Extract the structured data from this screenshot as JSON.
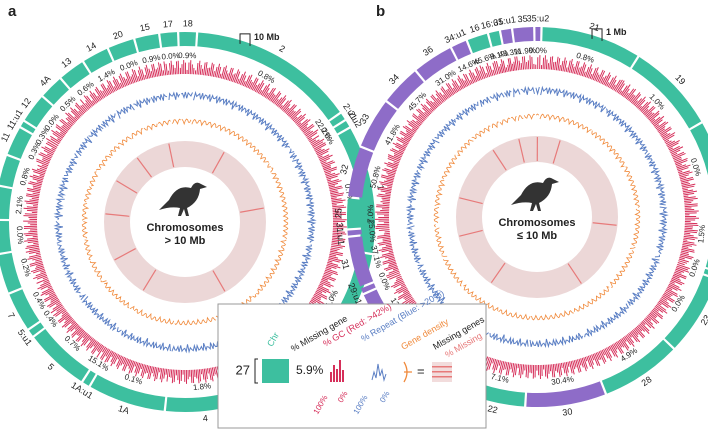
{
  "panels": [
    {
      "letter": "a",
      "center_label": [
        "Chromosomes",
        "> 10 Mb"
      ],
      "scale_label": "10 Mb",
      "chromosomes": [
        {
          "name": "2",
          "missing": "0.8%",
          "color": "#3dbf9f"
        },
        {
          "name": "2:u1",
          "missing": "22.2%",
          "color": "#3dbf9f"
        },
        {
          "name": "2:u2",
          "missing": "0.0%",
          "color": "#3dbf9f"
        },
        {
          "name": "1",
          "missing": "0.7%",
          "color": "#3dbf9f"
        },
        {
          "name": "3",
          "missing": "1.0%",
          "color": "#3dbf9f"
        },
        {
          "name": "3:u1",
          "missing": "25.0%",
          "color": "#3dbf9f"
        },
        {
          "name": "Z",
          "missing": "0.1%",
          "color": "#3dbf9f"
        },
        {
          "name": "4",
          "missing": "1.8%",
          "color": "#3dbf9f"
        },
        {
          "name": "1A",
          "missing": "0.1%",
          "color": "#3dbf9f"
        },
        {
          "name": "1A:u1",
          "missing": "15.1%",
          "color": "#3dbf9f"
        },
        {
          "name": "5",
          "missing": "0.7%",
          "color": "#3dbf9f"
        },
        {
          "name": "5:u1",
          "missing": "0.4%",
          "color": "#3dbf9f"
        },
        {
          "name": "7",
          "missing": "0.4%",
          "color": "#3dbf9f"
        },
        {
          "name": "6",
          "missing": "0.2%",
          "color": "#3dbf9f"
        },
        {
          "name": "8",
          "missing": "0.0%",
          "color": "#3dbf9f"
        },
        {
          "name": "9",
          "missing": "2.1%",
          "color": "#3dbf9f"
        },
        {
          "name": "10",
          "missing": "0.8%",
          "color": "#3dbf9f"
        },
        {
          "name": "11",
          "missing": "0.3%",
          "color": "#3dbf9f"
        },
        {
          "name": "11:u1",
          "missing": "0.3%",
          "color": "#3dbf9f"
        },
        {
          "name": "12",
          "missing": "0.0%",
          "color": "#3dbf9f"
        },
        {
          "name": "4A",
          "missing": "0.5%",
          "color": "#3dbf9f"
        },
        {
          "name": "13",
          "missing": "0.6%",
          "color": "#3dbf9f"
        },
        {
          "name": "14",
          "missing": "1.4%",
          "color": "#3dbf9f"
        },
        {
          "name": "20",
          "missing": "0.0%",
          "color": "#3dbf9f"
        },
        {
          "name": "15",
          "missing": "0.9%",
          "color": "#3dbf9f"
        },
        {
          "name": "17",
          "missing": "0.0%",
          "color": "#3dbf9f"
        },
        {
          "name": "18",
          "missing": "0.9%",
          "color": "#3dbf9f"
        }
      ]
    },
    {
      "letter": "b",
      "center_label": [
        "Chromosomes",
        "≤ 10 Mb"
      ],
      "scale_label": "1 Mb",
      "chromosomes": [
        {
          "name": "21",
          "missing": "0.8%",
          "color": "#3dbf9f"
        },
        {
          "name": "19",
          "missing": "1.0%",
          "color": "#3dbf9f"
        },
        {
          "name": "24",
          "missing": "0.0%",
          "color": "#3dbf9f"
        },
        {
          "name": "26",
          "missing": "1.5%",
          "color": "#3dbf9f"
        },
        {
          "name": "26:u1",
          "missing": "0.0%",
          "color": "#3dbf9f"
        },
        {
          "name": "23",
          "missing": "0.0%",
          "color": "#3dbf9f"
        },
        {
          "name": "28",
          "missing": "4.9%",
          "color": "#3dbf9f"
        },
        {
          "name": "30",
          "missing": "30.4%",
          "color": "#8e6cc8"
        },
        {
          "name": "22",
          "missing": "7.1%",
          "color": "#3dbf9f"
        },
        {
          "name": "27",
          "missing": "5.9%",
          "color": "#3dbf9f"
        },
        {
          "name": "29",
          "missing": "13.4%",
          "color": "#8e6cc8"
        },
        {
          "name": "29:u1",
          "missing": "0.0%",
          "color": "#8e6cc8"
        },
        {
          "name": "31",
          "missing": "37.1%",
          "color": "#8e6cc8"
        },
        {
          "name": "31:u1",
          "missing": "25.0%",
          "color": "#8e6cc8"
        },
        {
          "name": "25",
          "missing": "7.0%",
          "color": "#3dbf9f"
        },
        {
          "name": "32",
          "missing": "50.8%",
          "color": "#8e6cc8"
        },
        {
          "name": "33",
          "missing": "41.8%",
          "color": "#8e6cc8"
        },
        {
          "name": "34",
          "missing": "45.7%",
          "color": "#8e6cc8"
        },
        {
          "name": "36",
          "missing": "31.0%",
          "color": "#8e6cc8"
        },
        {
          "name": "34:u1",
          "missing": "14.6%",
          "color": "#8e6cc8"
        },
        {
          "name": "16",
          "missing": "45.6%",
          "color": "#3dbf9f"
        },
        {
          "name": "16:u1",
          "missing": "9.1%",
          "color": "#3dbf9f"
        },
        {
          "name": "35:u1",
          "missing": "43.3%",
          "color": "#8e6cc8"
        },
        {
          "name": "35",
          "missing": "11.9%",
          "color": "#8e6cc8"
        },
        {
          "name": "35:u2",
          "missing": "0.0%",
          "color": "#8e6cc8"
        }
      ]
    }
  ],
  "legend": {
    "chr": "Chr",
    "chr_example": "27",
    "missing_gene": "% Missing gene",
    "missing_example": "5.9%",
    "gc": "% GC (Red: >42%)",
    "gc_max": "100%",
    "gc_min": "0%",
    "repeat": "% Repeat (Blue: >20%)",
    "repeat_max": "100%",
    "repeat_min": "0%",
    "gene_density": "Gene density",
    "equals": "=",
    "missing_genes": "Missing genes",
    "percent_missing": "% Missing"
  }
}
